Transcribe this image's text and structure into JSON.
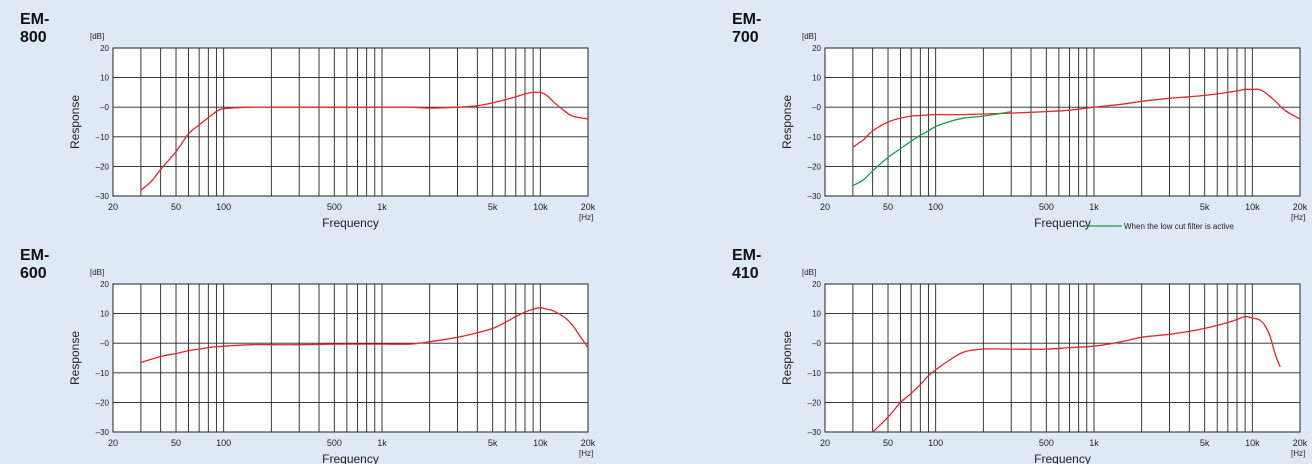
{
  "chart_data": [
    {
      "type": "line",
      "title": "EM-800",
      "xlabel": "Frequency",
      "ylabel": "Response",
      "y_unit": "[dB]",
      "x_unit": "[Hz]",
      "xscale": "log",
      "xlim": [
        20,
        20000
      ],
      "ylim": [
        -30,
        20
      ],
      "x_ticks": [
        20,
        50,
        100,
        500,
        1000,
        5000,
        10000,
        20000
      ],
      "x_tick_labels": [
        "20",
        "50",
        "100",
        "500",
        "1k",
        "5k",
        "10k",
        "20k"
      ],
      "y_ticks": [
        20,
        10,
        0,
        -10,
        -20,
        -30
      ],
      "y_tick_labels": [
        "20",
        "10",
        "–0",
        "–10",
        "–20",
        "–30"
      ],
      "grid": true,
      "series": [
        {
          "color": "#e0282b",
          "x": [
            30,
            35,
            40,
            50,
            60,
            70,
            80,
            90,
            100,
            150,
            200,
            300,
            500,
            700,
            1000,
            1500,
            2000,
            3000,
            4000,
            5000,
            6000,
            7000,
            8000,
            9000,
            10000,
            11000,
            12000,
            14000,
            16000,
            20000
          ],
          "y": [
            -28,
            -25,
            -21,
            -15,
            -9,
            -6,
            -3.5,
            -1.5,
            -0.5,
            0,
            0,
            0,
            0,
            0,
            0,
            0,
            -0.3,
            0,
            0.5,
            1.5,
            2.5,
            3.5,
            4.5,
            5,
            5,
            4,
            2,
            -1,
            -3,
            -4
          ]
        }
      ]
    },
    {
      "type": "line",
      "title": "EM-700",
      "xlabel": "Frequency",
      "ylabel": "Response",
      "y_unit": "[dB]",
      "x_unit": "[Hz]",
      "xscale": "log",
      "xlim": [
        20,
        20000
      ],
      "ylim": [
        -30,
        20
      ],
      "x_ticks": [
        20,
        50,
        100,
        500,
        1000,
        5000,
        10000,
        20000
      ],
      "x_tick_labels": [
        "20",
        "50",
        "100",
        "500",
        "1k",
        "5k",
        "10k",
        "20k"
      ],
      "y_ticks": [
        20,
        10,
        0,
        -10,
        -20,
        -30
      ],
      "y_tick_labels": [
        "20",
        "10",
        "–0",
        "–10",
        "–20",
        "–30"
      ],
      "grid": true,
      "legend": {
        "position": "bottom-right",
        "label": "When the low cut filter is active",
        "color": "#1a9a4a"
      },
      "series": [
        {
          "color": "#e0282b",
          "x": [
            30,
            35,
            40,
            50,
            60,
            70,
            80,
            100,
            150,
            200,
            300,
            500,
            700,
            1000,
            1500,
            2000,
            3000,
            4000,
            5000,
            6000,
            7000,
            8000,
            9000,
            10000,
            11000,
            12000,
            14000,
            16000,
            20000
          ],
          "y": [
            -13.5,
            -11,
            -8,
            -5,
            -3.7,
            -3,
            -2.8,
            -2.5,
            -2.5,
            -2.3,
            -2,
            -1.5,
            -1,
            0,
            1,
            2,
            3,
            3.5,
            4,
            4.5,
            5,
            5.5,
            6,
            6,
            6,
            5,
            2,
            -1,
            -4
          ]
        },
        {
          "color": "#1a9a4a",
          "x": [
            30,
            35,
            40,
            50,
            60,
            70,
            80,
            90,
            100,
            120,
            150,
            200,
            300
          ],
          "y": [
            -26.5,
            -24.5,
            -21.5,
            -17,
            -14,
            -11.5,
            -9.5,
            -8,
            -6.5,
            -5,
            -3.7,
            -3,
            -1.5
          ]
        }
      ]
    },
    {
      "type": "line",
      "title": "EM-600",
      "xlabel": "Frequency",
      "ylabel": "Response",
      "y_unit": "[dB]",
      "x_unit": "[Hz]",
      "xscale": "log",
      "xlim": [
        20,
        20000
      ],
      "ylim": [
        -30,
        20
      ],
      "x_ticks": [
        20,
        50,
        100,
        500,
        1000,
        5000,
        10000,
        20000
      ],
      "x_tick_labels": [
        "20",
        "50",
        "100",
        "500",
        "1k",
        "5k",
        "10k",
        "20k"
      ],
      "y_ticks": [
        20,
        10,
        0,
        -10,
        -20,
        -30
      ],
      "y_tick_labels": [
        "20",
        "10",
        "–0",
        "–10",
        "–20",
        "–30"
      ],
      "grid": true,
      "series": [
        {
          "color": "#e0282b",
          "x": [
            30,
            40,
            50,
            60,
            70,
            80,
            100,
            150,
            200,
            300,
            500,
            700,
            1000,
            1500,
            2000,
            3000,
            4000,
            5000,
            6000,
            7000,
            8000,
            9000,
            10000,
            11000,
            12000,
            14000,
            16000,
            18000,
            20000
          ],
          "y": [
            -6.5,
            -4.5,
            -3.5,
            -2.5,
            -2,
            -1.5,
            -1,
            -0.5,
            -0.5,
            -0.5,
            -0.3,
            -0.3,
            -0.3,
            -0.3,
            0.5,
            2,
            3.5,
            5,
            7,
            9,
            10.5,
            11.5,
            12,
            11.5,
            11,
            9,
            6,
            2,
            -1.5
          ]
        }
      ]
    },
    {
      "type": "line",
      "title": "EM-410",
      "xlabel": "Frequency",
      "ylabel": "Response",
      "y_unit": "[dB]",
      "x_unit": "[Hz]",
      "xscale": "log",
      "xlim": [
        20,
        20000
      ],
      "ylim": [
        -30,
        20
      ],
      "x_ticks": [
        20,
        50,
        100,
        500,
        1000,
        5000,
        10000,
        20000
      ],
      "x_tick_labels": [
        "20",
        "50",
        "100",
        "500",
        "1k",
        "5k",
        "10k",
        "20k"
      ],
      "y_ticks": [
        20,
        10,
        0,
        -10,
        -20,
        -30
      ],
      "y_tick_labels": [
        "20",
        "10",
        "–0",
        "–10",
        "–20",
        "–30"
      ],
      "grid": true,
      "series": [
        {
          "color": "#e0282b",
          "x": [
            40,
            50,
            60,
            70,
            80,
            90,
            100,
            120,
            150,
            200,
            300,
            500,
            700,
            1000,
            1500,
            2000,
            3000,
            4000,
            5000,
            6000,
            7000,
            8000,
            9000,
            10000,
            11000,
            12000,
            13000,
            14000,
            15000
          ],
          "y": [
            -30,
            -25,
            -20,
            -17,
            -14,
            -11,
            -9,
            -6,
            -3,
            -2,
            -2,
            -2,
            -1.5,
            -1,
            0.5,
            2,
            3,
            4,
            5,
            6,
            7,
            8,
            9,
            8.5,
            8,
            6,
            2,
            -4,
            -8
          ]
        }
      ]
    }
  ]
}
